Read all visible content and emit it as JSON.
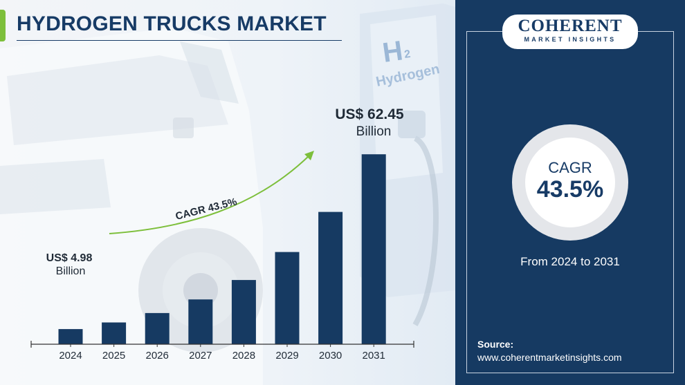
{
  "title": "HYDROGEN TRUCKS MARKET",
  "logo": {
    "main": "COHERENT",
    "sub": "MARKET INSIGHTS"
  },
  "cagr_box": {
    "label": "CAGR",
    "value": "43.5%",
    "period": "From 2024 to 2031"
  },
  "source": {
    "label": "Source:",
    "url": "www.coherentmarketinsights.com"
  },
  "annotations": {
    "start_value": "US$ 4.98",
    "start_unit": "Billion",
    "end_value": "US$ 62.45",
    "end_unit": "Billion",
    "cagr_arrow": "CAGR 43.5%"
  },
  "background_text": {
    "pump_h2": "H",
    "pump_sub": "2",
    "pump_word": "Hydrogen"
  },
  "colors": {
    "bar": "#163a62",
    "accent": "#7dbf3b",
    "title": "#173b66",
    "panel": "#163a62"
  },
  "chart_data": {
    "type": "bar",
    "title": "HYDROGEN TRUCKS MARKET",
    "xlabel": "",
    "ylabel": "",
    "categories": [
      "2024",
      "2025",
      "2026",
      "2027",
      "2028",
      "2029",
      "2030",
      "2031"
    ],
    "values": [
      4.98,
      7.15,
      10.26,
      14.72,
      21.12,
      30.31,
      43.5,
      62.45
    ],
    "unit": "US$ Billion",
    "ylim": [
      0,
      70
    ],
    "grid": false,
    "legend": "none"
  }
}
